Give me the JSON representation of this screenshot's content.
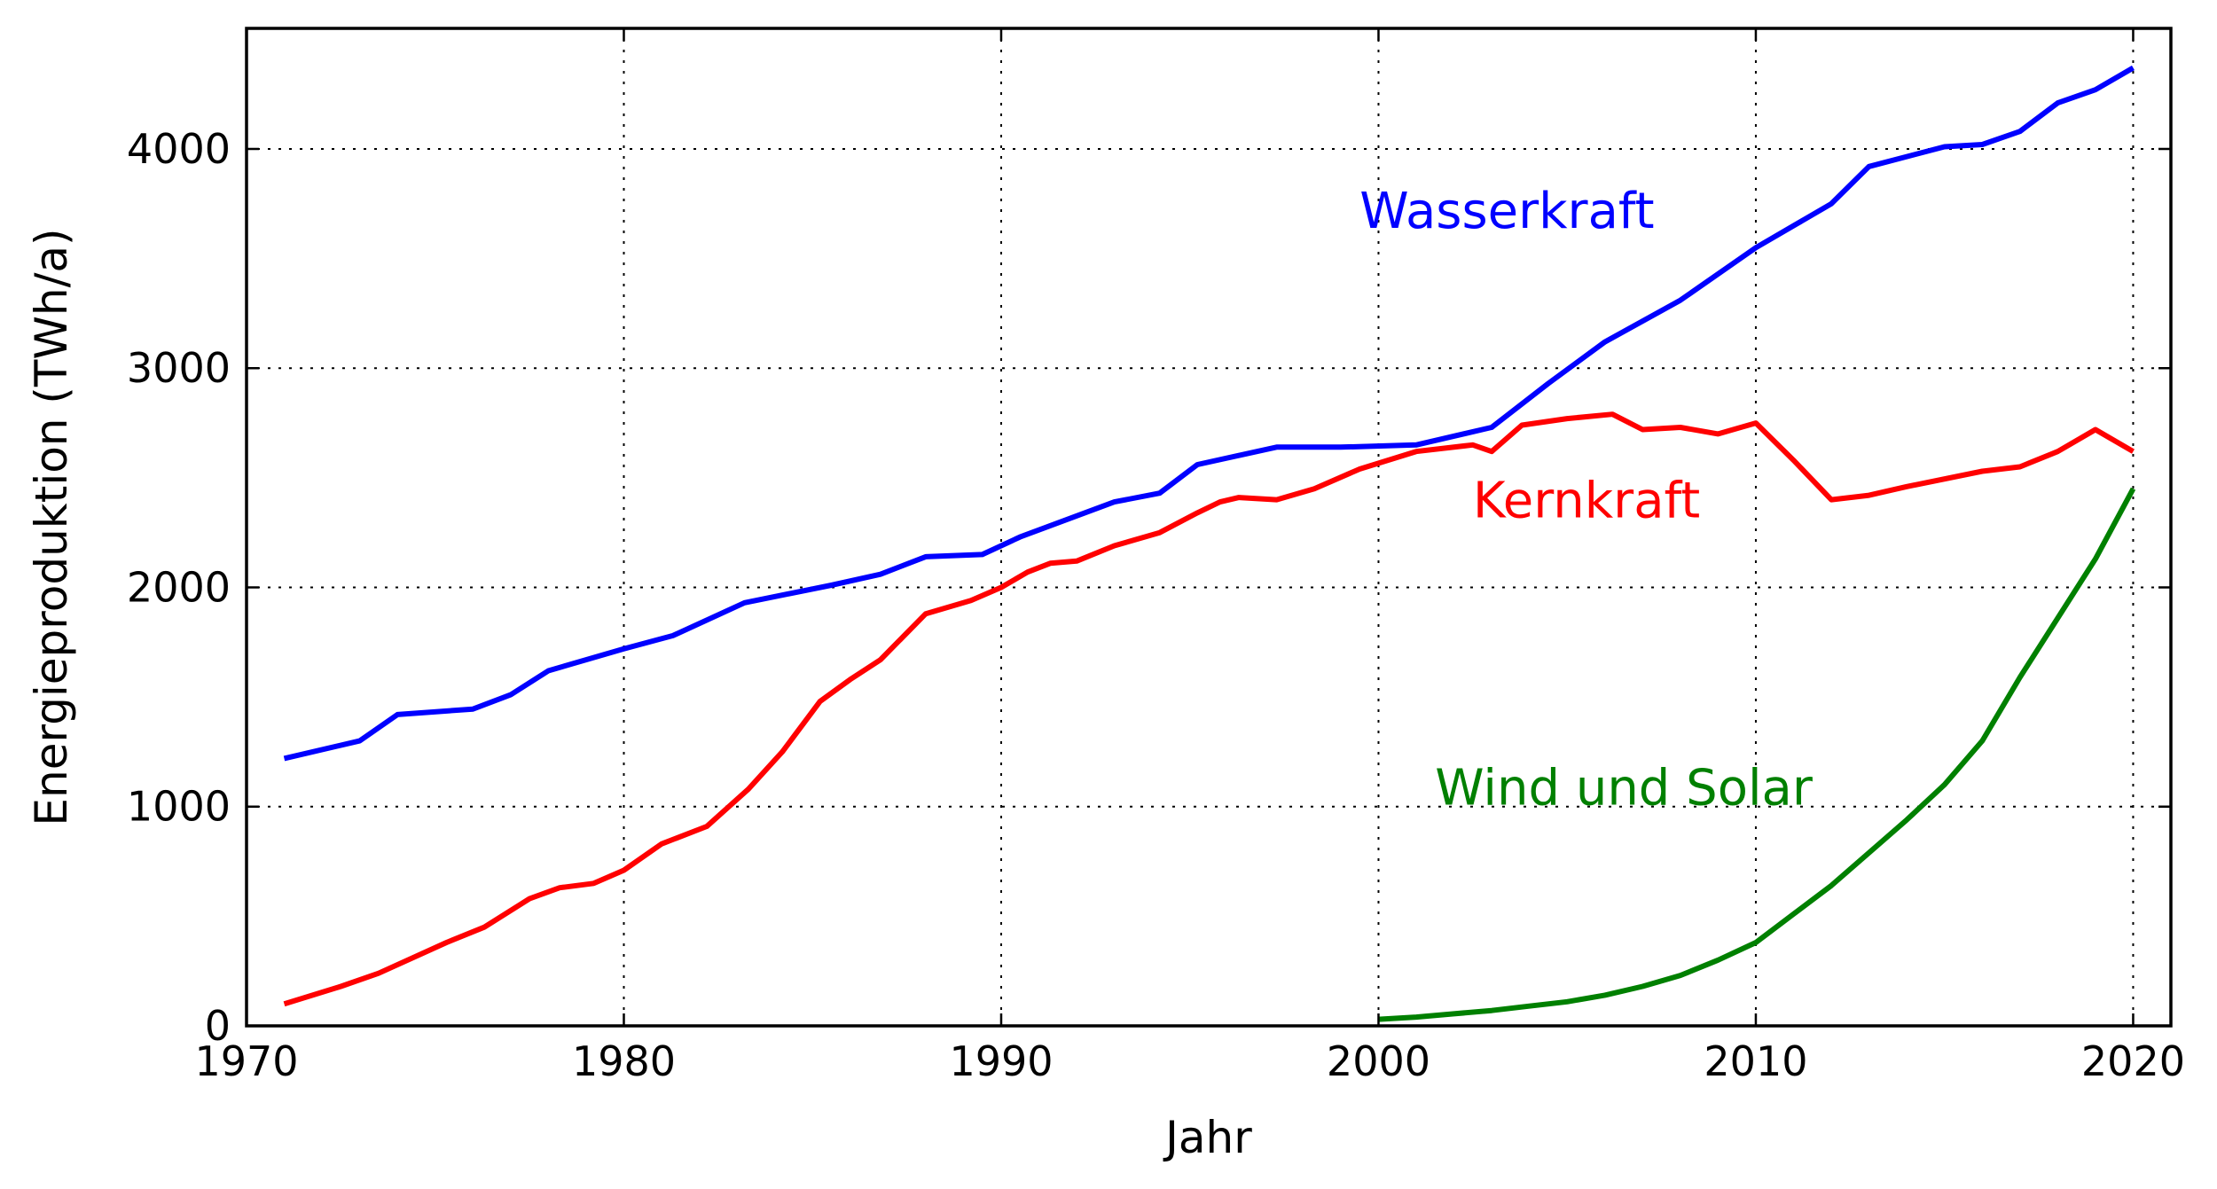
{
  "chart_data": {
    "type": "line",
    "xlabel": "Jahr",
    "ylabel": "Energieproduktion (TWh/a)",
    "xlim": [
      1970,
      2021
    ],
    "ylim": [
      0,
      4550
    ],
    "xticks": [
      1970,
      1980,
      1990,
      2000,
      2010,
      2020
    ],
    "yticks": [
      0,
      1000,
      2000,
      3000,
      4000
    ],
    "grid": true,
    "legend": "none",
    "series": [
      {
        "name": "Wasserkraft",
        "color": "#0000ff",
        "points": [
          [
            1971,
            1220
          ],
          [
            1973,
            1300
          ],
          [
            1974,
            1420
          ],
          [
            1976,
            1445
          ],
          [
            1977,
            1510
          ],
          [
            1978,
            1620
          ],
          [
            1980,
            1720
          ],
          [
            1981.3,
            1780
          ],
          [
            1983.2,
            1930
          ],
          [
            1985.5,
            2010
          ],
          [
            1986.8,
            2060
          ],
          [
            1988,
            2140
          ],
          [
            1989.5,
            2150
          ],
          [
            1990.5,
            2230
          ],
          [
            1993,
            2390
          ],
          [
            1994.2,
            2430
          ],
          [
            1995.2,
            2560
          ],
          [
            1997.3,
            2640
          ],
          [
            1999,
            2640
          ],
          [
            2001,
            2650
          ],
          [
            2003,
            2730
          ],
          [
            2004.5,
            2930
          ],
          [
            2006,
            3120
          ],
          [
            2008,
            3310
          ],
          [
            2010,
            3550
          ],
          [
            2012,
            3750
          ],
          [
            2013,
            3920
          ],
          [
            2015,
            4010
          ],
          [
            2016,
            4020
          ],
          [
            2017,
            4080
          ],
          [
            2018,
            4210
          ],
          [
            2019,
            4270
          ],
          [
            2020,
            4370
          ]
        ]
      },
      {
        "name": "Kernkraft",
        "color": "#ff0000",
        "points": [
          [
            1971,
            100
          ],
          [
            1972.5,
            180
          ],
          [
            1973.5,
            240
          ],
          [
            1975.3,
            380
          ],
          [
            1976.3,
            450
          ],
          [
            1977.5,
            580
          ],
          [
            1978.3,
            630
          ],
          [
            1979.2,
            650
          ],
          [
            1980,
            710
          ],
          [
            1981,
            830
          ],
          [
            1982.2,
            910
          ],
          [
            1983.3,
            1080
          ],
          [
            1984.2,
            1250
          ],
          [
            1985.2,
            1480
          ],
          [
            1986,
            1580
          ],
          [
            1986.8,
            1670
          ],
          [
            1988,
            1880
          ],
          [
            1989.2,
            1940
          ],
          [
            1990,
            2000
          ],
          [
            1990.7,
            2070
          ],
          [
            1991.3,
            2110
          ],
          [
            1992,
            2120
          ],
          [
            1993,
            2190
          ],
          [
            1994.2,
            2250
          ],
          [
            1995.2,
            2340
          ],
          [
            1995.8,
            2390
          ],
          [
            1996.3,
            2410
          ],
          [
            1997.3,
            2400
          ],
          [
            1998.3,
            2450
          ],
          [
            1999.5,
            2540
          ],
          [
            2001,
            2620
          ],
          [
            2002.5,
            2650
          ],
          [
            2003,
            2620
          ],
          [
            2003.8,
            2740
          ],
          [
            2005,
            2770
          ],
          [
            2006.2,
            2790
          ],
          [
            2007,
            2720
          ],
          [
            2008,
            2730
          ],
          [
            2009,
            2700
          ],
          [
            2010,
            2750
          ],
          [
            2011,
            2580
          ],
          [
            2012,
            2400
          ],
          [
            2013,
            2420
          ],
          [
            2014,
            2460
          ],
          [
            2016,
            2530
          ],
          [
            2017,
            2550
          ],
          [
            2018,
            2620
          ],
          [
            2019,
            2720
          ],
          [
            2020,
            2620
          ]
        ]
      },
      {
        "name": "Wind und Solar",
        "color": "#008000",
        "points": [
          [
            2000,
            30
          ],
          [
            2001,
            40
          ],
          [
            2002,
            55
          ],
          [
            2003,
            70
          ],
          [
            2004,
            90
          ],
          [
            2005,
            110
          ],
          [
            2006,
            140
          ],
          [
            2007,
            180
          ],
          [
            2008,
            230
          ],
          [
            2009,
            300
          ],
          [
            2010,
            380
          ],
          [
            2011,
            510
          ],
          [
            2012,
            640
          ],
          [
            2013,
            790
          ],
          [
            2014,
            940
          ],
          [
            2015,
            1100
          ],
          [
            2016,
            1300
          ],
          [
            2017,
            1590
          ],
          [
            2018,
            1860
          ],
          [
            2019,
            2130
          ],
          [
            2020,
            2450
          ]
        ]
      }
    ],
    "annotations": [
      {
        "text": "Wasserkraft",
        "color": "#0000ff",
        "x": 1999.5,
        "y": 3640,
        "series": 0
      },
      {
        "text": "Kernkraft",
        "color": "#ff0000",
        "x": 2002.5,
        "y": 2320,
        "series": 1
      },
      {
        "text": "Wind und Solar",
        "color": "#008000",
        "x": 2001.5,
        "y": 1010,
        "series": 2
      }
    ]
  }
}
